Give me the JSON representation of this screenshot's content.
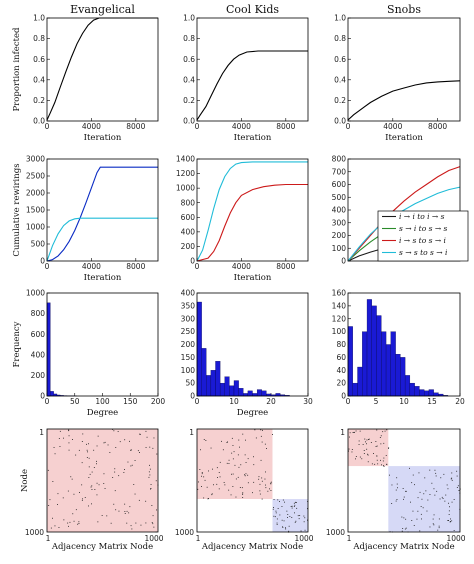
{
  "chart_data": [
    {
      "type": "line",
      "panel": "r1c1",
      "title": "Evangelical",
      "xlabel": "Iteration",
      "ylabel": "Proportion infected",
      "xlim": [
        0,
        10000
      ],
      "ylim": [
        0,
        1.0
      ],
      "xticks": [
        "0",
        "4000",
        "8000"
      ],
      "yticks": [
        "0.0",
        "0.2",
        "0.4",
        "0.6",
        "0.8",
        "1.0"
      ],
      "series": [
        {
          "color": "#000000",
          "x": [
            0,
            300,
            700,
            1200,
            1700,
            2200,
            2700,
            3200,
            3700,
            4200,
            4700,
            5200,
            10000
          ],
          "y": [
            0.01,
            0.08,
            0.18,
            0.33,
            0.48,
            0.62,
            0.75,
            0.85,
            0.93,
            0.98,
            1.0,
            1.0,
            1.0
          ]
        }
      ]
    },
    {
      "type": "line",
      "panel": "r1c2",
      "title": "Cool Kids",
      "xlabel": "Iteration",
      "ylabel": "",
      "xlim": [
        0,
        10000
      ],
      "ylim": [
        0,
        1.0
      ],
      "xticks": [
        "0",
        "4000",
        "8000"
      ],
      "yticks": [
        "0.0",
        "0.2",
        "0.4",
        "0.6",
        "0.8",
        "1.0"
      ],
      "series": [
        {
          "color": "#000000",
          "x": [
            0,
            300,
            800,
            1300,
            1800,
            2300,
            2800,
            3300,
            3800,
            4500,
            5500,
            7000,
            10000
          ],
          "y": [
            0.01,
            0.06,
            0.14,
            0.25,
            0.36,
            0.46,
            0.54,
            0.6,
            0.64,
            0.67,
            0.68,
            0.68,
            0.68
          ]
        }
      ]
    },
    {
      "type": "line",
      "panel": "r1c3",
      "title": "Snobs",
      "xlabel": "Iteration",
      "ylabel": "",
      "xlim": [
        0,
        10000
      ],
      "ylim": [
        0,
        1.0
      ],
      "xticks": [
        "0",
        "4000",
        "8000"
      ],
      "yticks": [
        "0.0",
        "0.2",
        "0.4",
        "0.6",
        "0.8",
        "1.0"
      ],
      "series": [
        {
          "color": "#000000",
          "x": [
            0,
            500,
            1000,
            1500,
            2000,
            3000,
            4000,
            5000,
            6000,
            7000,
            8000,
            9000,
            10000
          ],
          "y": [
            0.01,
            0.06,
            0.1,
            0.14,
            0.18,
            0.24,
            0.29,
            0.32,
            0.35,
            0.37,
            0.38,
            0.385,
            0.39
          ]
        }
      ]
    },
    {
      "type": "line",
      "panel": "r2c1",
      "title": "",
      "xlabel": "Iteration",
      "ylabel": "Cumulative rewirings",
      "xlim": [
        0,
        10000
      ],
      "ylim": [
        0,
        3000
      ],
      "xticks": [
        "0",
        "4000",
        "8000"
      ],
      "yticks": [
        "0",
        "500",
        "1000",
        "1500",
        "2000",
        "2500",
        "3000"
      ],
      "series": [
        {
          "color": "#0a2bc4",
          "x": [
            0,
            500,
            1000,
            1500,
            2000,
            2500,
            3000,
            3500,
            4000,
            4500,
            4800,
            10000
          ],
          "y": [
            0,
            40,
            150,
            330,
            580,
            900,
            1280,
            1700,
            2150,
            2600,
            2760,
            2760
          ]
        },
        {
          "color": "#20bcd8",
          "x": [
            0,
            500,
            1000,
            1500,
            2000,
            2500,
            3000,
            10000
          ],
          "y": [
            0,
            450,
            800,
            1040,
            1180,
            1240,
            1260,
            1260
          ]
        }
      ]
    },
    {
      "type": "line",
      "panel": "r2c2",
      "title": "",
      "xlabel": "Iteration",
      "ylabel": "",
      "xlim": [
        0,
        10000
      ],
      "ylim": [
        0,
        1400
      ],
      "xticks": [
        "0",
        "4000",
        "8000"
      ],
      "yticks": [
        "0",
        "200",
        "400",
        "600",
        "800",
        "1000",
        "1200",
        "1400"
      ],
      "series": [
        {
          "color": "#20bcd8",
          "x": [
            0,
            500,
            1000,
            1500,
            2000,
            2500,
            3000,
            3500,
            4000,
            5000,
            6000,
            10000
          ],
          "y": [
            0,
            150,
            420,
            720,
            980,
            1160,
            1270,
            1330,
            1350,
            1360,
            1360,
            1360
          ]
        },
        {
          "color": "#cc1a1a",
          "x": [
            0,
            1000,
            1500,
            2000,
            2500,
            3000,
            3500,
            4000,
            5000,
            6000,
            7000,
            8000,
            10000
          ],
          "y": [
            0,
            40,
            130,
            280,
            480,
            660,
            800,
            900,
            980,
            1020,
            1040,
            1050,
            1050
          ]
        }
      ]
    },
    {
      "type": "line",
      "panel": "r2c3",
      "title": "",
      "xlabel": "",
      "ylabel": "",
      "xlim": [
        0,
        10000
      ],
      "ylim": [
        0,
        800
      ],
      "xticks": [],
      "yticks": [
        "0",
        "100",
        "200",
        "300",
        "400",
        "500",
        "600",
        "700",
        "800"
      ],
      "legend": {
        "placement": "lower-right",
        "entries": [
          {
            "label": "i → i  to  i → s",
            "color": "#1a1a1a"
          },
          {
            "label": "s → i  to  s → s",
            "color": "#2a8a2a"
          },
          {
            "label": "i → s  to  s → i",
            "color": "#cc1a1a"
          },
          {
            "label": "s → s  to  s → i",
            "color": "#20bcd8"
          }
        ]
      },
      "series": [
        {
          "color": "#1a1a1a",
          "x": [
            0,
            1000,
            2000,
            3000,
            4000,
            5000,
            6000,
            7000,
            8000,
            9000,
            10000
          ],
          "y": [
            0,
            40,
            70,
            95,
            110,
            120,
            125,
            128,
            130,
            132,
            133
          ]
        },
        {
          "color": "#2a8a2a",
          "x": [
            0,
            1000,
            2000,
            3000,
            4000,
            5000,
            6000,
            7000,
            8000,
            9000,
            10000
          ],
          "y": [
            0,
            80,
            150,
            210,
            260,
            300,
            330,
            355,
            370,
            380,
            390
          ]
        },
        {
          "color": "#cc1a1a",
          "x": [
            0,
            1000,
            2000,
            3000,
            4000,
            5000,
            6000,
            7000,
            8000,
            9000,
            10000
          ],
          "y": [
            0,
            100,
            200,
            300,
            390,
            470,
            540,
            600,
            660,
            710,
            740
          ]
        },
        {
          "color": "#20bcd8",
          "x": [
            0,
            1000,
            2000,
            3000,
            4000,
            5000,
            6000,
            7000,
            8000,
            9000,
            10000
          ],
          "y": [
            0,
            110,
            210,
            290,
            350,
            400,
            450,
            490,
            530,
            560,
            580
          ]
        }
      ]
    },
    {
      "type": "bar",
      "panel": "r3c1",
      "title": "",
      "xlabel": "Degree",
      "ylabel": "Frequency",
      "xlim": [
        0,
        200
      ],
      "ylim": [
        0,
        1000
      ],
      "xticks": [
        "0",
        "50",
        "100",
        "150",
        "200"
      ],
      "yticks": [
        "0",
        "200",
        "400",
        "600",
        "800",
        "1000"
      ],
      "bar_color": "#1a1ad4",
      "bin_width": 6,
      "bins": [
        0,
        6,
        12,
        18,
        24,
        30,
        36,
        42,
        48
      ],
      "values": [
        905,
        45,
        20,
        10,
        6,
        4,
        3,
        2,
        1
      ]
    },
    {
      "type": "bar",
      "panel": "r3c2",
      "title": "",
      "xlabel": "Degree",
      "ylabel": "",
      "xlim": [
        0,
        30
      ],
      "ylim": [
        0,
        400
      ],
      "xticks": [
        "0",
        "10",
        "20",
        "30"
      ],
      "yticks": [
        "0",
        "50",
        "100",
        "150",
        "200",
        "250",
        "300",
        "350",
        "400"
      ],
      "bar_color": "#1a1ad4",
      "bin_width": 1.25,
      "bins": [
        0,
        1.25,
        2.5,
        3.75,
        5,
        6.25,
        7.5,
        8.75,
        10,
        11.25,
        12.5,
        13.75,
        15,
        16.25,
        17.5,
        18.75,
        20,
        21.25,
        22.5,
        23.75
      ],
      "values": [
        365,
        185,
        80,
        100,
        135,
        50,
        75,
        40,
        60,
        30,
        10,
        20,
        10,
        25,
        20,
        8,
        5,
        10,
        5,
        3
      ]
    },
    {
      "type": "bar",
      "panel": "r3c3",
      "title": "",
      "xlabel": "",
      "ylabel": "",
      "xlim": [
        0,
        20
      ],
      "ylim": [
        0,
        160
      ],
      "xticks": [
        "0",
        "5",
        "10",
        "15",
        "20"
      ],
      "yticks": [
        "0",
        "20",
        "40",
        "60",
        "80",
        "100",
        "120",
        "140",
        "160"
      ],
      "bar_color": "#1a1ad4",
      "bin_width": 0.85,
      "bins": [
        0,
        0.85,
        1.7,
        2.55,
        3.4,
        4.25,
        5.1,
        5.95,
        6.8,
        7.65,
        8.5,
        9.35,
        10.2,
        11.05,
        11.9,
        12.75,
        13.6,
        14.45,
        15.3,
        16.15,
        17
      ],
      "values": [
        108,
        20,
        45,
        100,
        150,
        140,
        125,
        100,
        80,
        100,
        65,
        60,
        32,
        20,
        15,
        10,
        8,
        10,
        5,
        3,
        1
      ]
    },
    {
      "type": "heatmap",
      "panel": "r4c1",
      "title": "",
      "xlabel": "Adjacency Matrix Node",
      "ylabel": "Node",
      "xticks": [
        "1",
        "1000"
      ],
      "yticks": [
        "1",
        "1000"
      ],
      "blocks": [
        {
          "from": 0,
          "to": 1000,
          "color": "#f6d0d0"
        }
      ]
    },
    {
      "type": "heatmap",
      "panel": "r4c2",
      "title": "",
      "xlabel": "Adjacency Matrix Node",
      "ylabel": "",
      "xticks": [
        "1",
        "1000"
      ],
      "yticks": [
        "1",
        "1000"
      ],
      "blocks": [
        {
          "from": 0,
          "to": 680,
          "color": "#f6d0d0"
        },
        {
          "from": 680,
          "to": 1000,
          "color": "#d6d9f6"
        }
      ]
    },
    {
      "type": "heatmap",
      "panel": "r4c3",
      "title": "",
      "xlabel": "Adjacency Matrix Node",
      "ylabel": "",
      "xticks": [
        "1",
        "1000"
      ],
      "yticks": [
        "1",
        "1000"
      ],
      "blocks": [
        {
          "from": 0,
          "to": 360,
          "color": "#f6d0d0"
        },
        {
          "from": 360,
          "to": 1000,
          "color": "#d6d9f6"
        }
      ]
    }
  ]
}
